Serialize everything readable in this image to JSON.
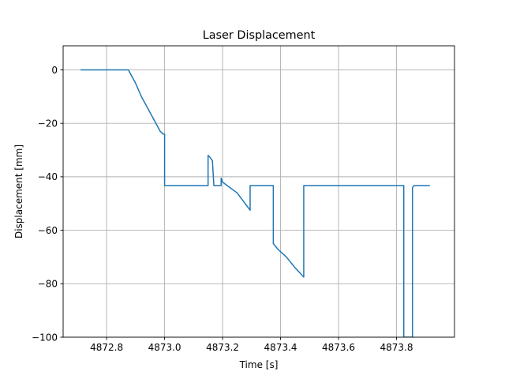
{
  "chart_data": {
    "type": "line",
    "title": "Laser Displacement",
    "xlabel": "Time [s]",
    "ylabel": "Displacement [mm]",
    "xlim": [
      4872.65,
      4874.0
    ],
    "ylim": [
      -100,
      9
    ],
    "xticks": [
      4872.8,
      4873.0,
      4873.2,
      4873.4,
      4873.6,
      4873.8
    ],
    "xtick_labels": [
      "4872.8",
      "4873.0",
      "4873.2",
      "4873.4",
      "4873.6",
      "4873.8"
    ],
    "yticks": [
      0,
      -20,
      -40,
      -60,
      -80,
      -100
    ],
    "ytick_labels": [
      "0",
      "−20",
      "−40",
      "−60",
      "−80",
      "−100"
    ],
    "grid": true,
    "series": [
      {
        "color": "#1f77b4",
        "x": [
          4872.71,
          4872.75,
          4872.8,
          4872.85,
          4872.875,
          4872.885,
          4872.9,
          4872.92,
          4872.95,
          4872.97,
          4872.985,
          4872.995,
          4873.0,
          4873.0,
          4873.05,
          4873.1,
          4873.15,
          4873.15,
          4873.155,
          4873.165,
          4873.17,
          4873.17,
          4873.195,
          4873.195,
          4873.2,
          4873.25,
          4873.295,
          4873.295,
          4873.3,
          4873.35,
          4873.375,
          4873.375,
          4873.39,
          4873.42,
          4873.45,
          4873.48,
          4873.48,
          4873.5,
          4873.6,
          4873.7,
          4873.8,
          4873.825,
          4873.825,
          4873.825,
          4873.855,
          4873.855,
          4873.86,
          4873.87,
          4873.9,
          4873.915
        ],
        "y": [
          0,
          0,
          0,
          0,
          0,
          -2,
          -5,
          -10,
          -16,
          -20,
          -23,
          -24,
          -24,
          -43.3,
          -43.3,
          -43.3,
          -43.3,
          -32,
          -32.5,
          -34,
          -43.3,
          -43.3,
          -43.3,
          -40.5,
          -42,
          -46,
          -52.5,
          -43.3,
          -43.3,
          -43.3,
          -43.3,
          -65,
          -67,
          -70,
          -74,
          -77.5,
          -43.3,
          -43.3,
          -43.3,
          -43.3,
          -43.3,
          -43.3,
          -100,
          -100,
          -100,
          -44,
          -43.3,
          -43.3,
          -43.3,
          -43.3
        ]
      }
    ]
  }
}
